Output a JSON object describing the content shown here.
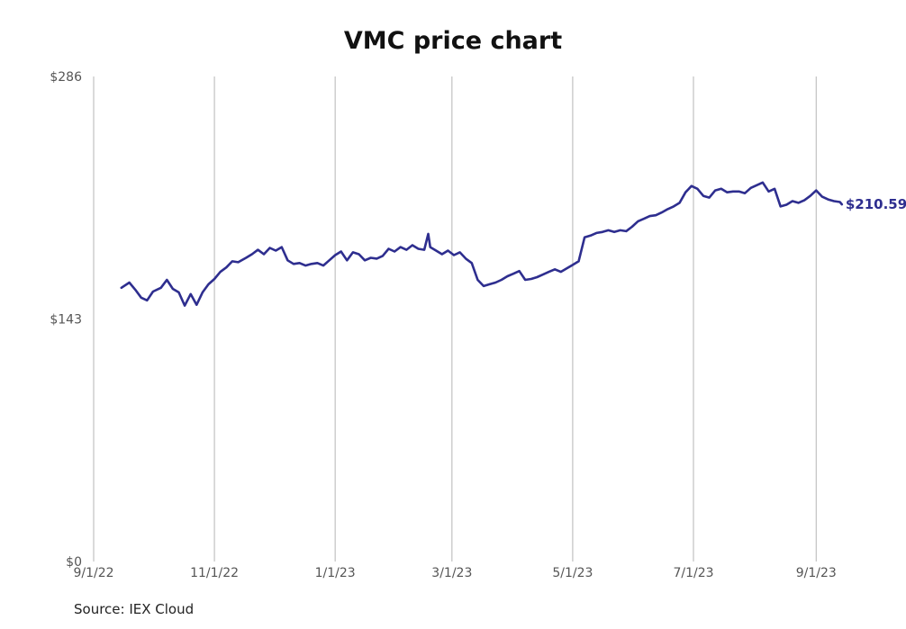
{
  "chart_data": {
    "type": "line",
    "title": "VMC price chart",
    "xlabel": "",
    "ylabel": "",
    "ylim": [
      0,
      286
    ],
    "xlim": [
      "2022-09-01",
      "2023-09-30"
    ],
    "y_ticks": [
      {
        "value": 0,
        "label": "$0"
      },
      {
        "value": 143,
        "label": "$143"
      },
      {
        "value": 286,
        "label": "$286"
      }
    ],
    "x_ticks": [
      {
        "value": "2022-09-01",
        "label": "9/1/22"
      },
      {
        "value": "2022-11-01",
        "label": "11/1/22"
      },
      {
        "value": "2023-01-01",
        "label": "1/1/23"
      },
      {
        "value": "2023-03-01",
        "label": "3/1/23"
      },
      {
        "value": "2023-05-01",
        "label": "5/1/23"
      },
      {
        "value": "2023-07-01",
        "label": "7/1/23"
      },
      {
        "value": "2023-09-01",
        "label": "9/1/23"
      }
    ],
    "grid": "vertical",
    "line_color": "#2e2e8f",
    "last_value_label": "$210.59",
    "series": [
      {
        "points": [
          [
            "2022-09-15",
            161.4
          ],
          [
            "2022-09-19",
            164.5
          ],
          [
            "2022-09-22",
            160.3
          ],
          [
            "2022-09-25",
            155.6
          ],
          [
            "2022-09-28",
            154.0
          ],
          [
            "2022-10-01",
            159.2
          ],
          [
            "2022-10-05",
            161.4
          ],
          [
            "2022-10-08",
            166.1
          ],
          [
            "2022-10-11",
            160.8
          ],
          [
            "2022-10-14",
            158.7
          ],
          [
            "2022-10-17",
            150.9
          ],
          [
            "2022-10-20",
            157.7
          ],
          [
            "2022-10-23",
            151.4
          ],
          [
            "2022-10-26",
            158.7
          ],
          [
            "2022-10-29",
            163.5
          ],
          [
            "2022-11-01",
            166.6
          ],
          [
            "2022-11-04",
            170.8
          ],
          [
            "2022-11-07",
            173.4
          ],
          [
            "2022-11-10",
            177.0
          ],
          [
            "2022-11-13",
            176.5
          ],
          [
            "2022-11-17",
            179.1
          ],
          [
            "2022-11-20",
            181.2
          ],
          [
            "2022-11-23",
            183.8
          ],
          [
            "2022-11-26",
            181.2
          ],
          [
            "2022-11-29",
            184.9
          ],
          [
            "2022-12-02",
            183.3
          ],
          [
            "2022-12-05",
            185.4
          ],
          [
            "2022-12-08",
            177.6
          ],
          [
            "2022-12-11",
            175.5
          ],
          [
            "2022-12-14",
            176.0
          ],
          [
            "2022-12-17",
            174.5
          ],
          [
            "2022-12-20",
            175.5
          ],
          [
            "2022-12-23",
            176.0
          ],
          [
            "2022-12-26",
            174.5
          ],
          [
            "2022-12-29",
            177.6
          ],
          [
            "2023-01-01",
            180.7
          ],
          [
            "2023-01-04",
            182.8
          ],
          [
            "2023-01-07",
            177.6
          ],
          [
            "2023-01-10",
            182.3
          ],
          [
            "2023-01-13",
            181.2
          ],
          [
            "2023-01-16",
            177.6
          ],
          [
            "2023-01-19",
            179.1
          ],
          [
            "2023-01-22",
            178.6
          ],
          [
            "2023-01-25",
            180.2
          ],
          [
            "2023-01-28",
            184.4
          ],
          [
            "2023-01-31",
            182.8
          ],
          [
            "2023-02-03",
            185.4
          ],
          [
            "2023-02-06",
            183.8
          ],
          [
            "2023-02-09",
            186.5
          ],
          [
            "2023-02-12",
            184.4
          ],
          [
            "2023-02-15",
            183.8
          ],
          [
            "2023-02-17",
            193.2
          ],
          [
            "2023-02-18",
            185.4
          ],
          [
            "2023-02-21",
            183.3
          ],
          [
            "2023-02-24",
            181.2
          ],
          [
            "2023-02-27",
            183.3
          ],
          [
            "2023-03-02",
            180.7
          ],
          [
            "2023-03-05",
            182.3
          ],
          [
            "2023-03-08",
            178.6
          ],
          [
            "2023-03-11",
            176.0
          ],
          [
            "2023-03-14",
            166.1
          ],
          [
            "2023-03-17",
            162.4
          ],
          [
            "2023-03-20",
            163.5
          ],
          [
            "2023-03-23",
            164.5
          ],
          [
            "2023-03-26",
            166.1
          ],
          [
            "2023-03-29",
            168.2
          ],
          [
            "2023-04-01",
            169.7
          ],
          [
            "2023-04-04",
            171.3
          ],
          [
            "2023-04-07",
            166.1
          ],
          [
            "2023-04-10",
            166.6
          ],
          [
            "2023-04-13",
            167.7
          ],
          [
            "2023-04-16",
            169.2
          ],
          [
            "2023-04-19",
            170.8
          ],
          [
            "2023-04-22",
            172.3
          ],
          [
            "2023-04-25",
            170.8
          ],
          [
            "2023-04-28",
            172.8
          ],
          [
            "2023-05-01",
            174.9
          ],
          [
            "2023-05-04",
            177.0
          ],
          [
            "2023-05-07",
            191.1
          ],
          [
            "2023-05-10",
            192.2
          ],
          [
            "2023-05-13",
            193.7
          ],
          [
            "2023-05-16",
            194.3
          ],
          [
            "2023-05-19",
            195.3
          ],
          [
            "2023-05-22",
            194.3
          ],
          [
            "2023-05-25",
            195.3
          ],
          [
            "2023-05-28",
            194.8
          ],
          [
            "2023-05-31",
            197.4
          ],
          [
            "2023-06-03",
            200.6
          ],
          [
            "2023-06-06",
            202.1
          ],
          [
            "2023-06-09",
            203.7
          ],
          [
            "2023-06-12",
            204.2
          ],
          [
            "2023-06-15",
            205.8
          ],
          [
            "2023-06-18",
            207.8
          ],
          [
            "2023-06-21",
            209.4
          ],
          [
            "2023-06-24",
            211.5
          ],
          [
            "2023-06-27",
            217.7
          ],
          [
            "2023-06-30",
            221.4
          ],
          [
            "2023-07-03",
            219.8
          ],
          [
            "2023-07-06",
            215.6
          ],
          [
            "2023-07-09",
            214.6
          ],
          [
            "2023-07-12",
            218.8
          ],
          [
            "2023-07-15",
            219.8
          ],
          [
            "2023-07-18",
            217.7
          ],
          [
            "2023-07-21",
            218.2
          ],
          [
            "2023-07-24",
            218.2
          ],
          [
            "2023-07-27",
            217.2
          ],
          [
            "2023-07-30",
            220.3
          ],
          [
            "2023-08-02",
            221.9
          ],
          [
            "2023-08-05",
            223.5
          ],
          [
            "2023-08-08",
            218.2
          ],
          [
            "2023-08-11",
            219.8
          ],
          [
            "2023-08-14",
            209.4
          ],
          [
            "2023-08-17",
            210.4
          ],
          [
            "2023-08-20",
            212.5
          ],
          [
            "2023-08-23",
            211.5
          ],
          [
            "2023-08-26",
            213.0
          ],
          [
            "2023-08-29",
            215.6
          ],
          [
            "2023-09-01",
            218.8
          ],
          [
            "2023-09-04",
            215.1
          ],
          [
            "2023-09-07",
            213.5
          ],
          [
            "2023-09-10",
            212.5
          ],
          [
            "2023-09-13",
            212.0
          ],
          [
            "2023-09-14",
            210.59
          ]
        ]
      }
    ]
  },
  "footer": {
    "source": "Source: IEX Cloud"
  }
}
